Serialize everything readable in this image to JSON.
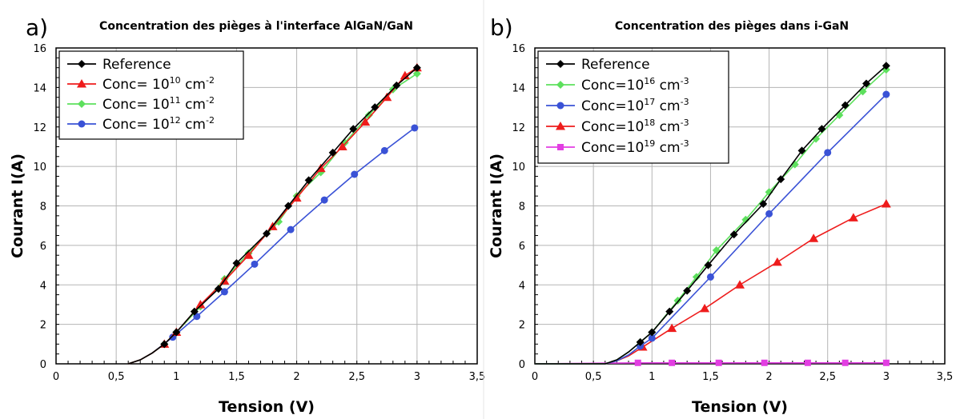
{
  "chart_data": [
    {
      "panel_label": "a)",
      "type": "line",
      "title": "Concentration des pièges à l'interface AlGaN/GaN",
      "xlabel": "Tension (V)",
      "ylabel": "Courant I(A)",
      "xlim": [
        0,
        3.5
      ],
      "ylim": [
        0,
        16
      ],
      "xticks": [
        "0",
        "0,5",
        "1",
        "1,5",
        "2",
        "2,5",
        "3",
        "3,5"
      ],
      "yticks": [
        "0",
        "2",
        "4",
        "6",
        "8",
        "10",
        "12",
        "14",
        "16"
      ],
      "grid": true,
      "legend_position": "top-left",
      "series": [
        {
          "name": "Reference",
          "base": "Reference",
          "sup": "",
          "unit": "",
          "color": "#000000",
          "marker": "diamond",
          "x": [
            0.6,
            0.7,
            0.8,
            0.9,
            1.0,
            1.15,
            1.35,
            1.5,
            1.75,
            1.93,
            2.1,
            2.3,
            2.47,
            2.65,
            2.83,
            3.0
          ],
          "y": [
            0,
            0.2,
            0.55,
            1.0,
            1.6,
            2.65,
            3.8,
            5.1,
            6.6,
            8.0,
            9.3,
            10.7,
            11.9,
            13.0,
            14.1,
            15.0
          ]
        },
        {
          "name": "Conc= 10^10 cm^-2",
          "base": "Conc= 10",
          "sup": "10",
          "unit": " cm",
          "unitsup": "-2",
          "color": "#ee1c1c",
          "marker": "triangle",
          "x": [
            0.6,
            0.7,
            0.8,
            0.9,
            1.0,
            1.2,
            1.4,
            1.6,
            1.8,
            2.0,
            2.2,
            2.38,
            2.57,
            2.75,
            2.9,
            3.0
          ],
          "y": [
            0,
            0.2,
            0.55,
            1.0,
            1.6,
            3.0,
            4.2,
            5.5,
            6.95,
            8.4,
            9.9,
            11.0,
            12.25,
            13.5,
            14.6,
            15.0
          ]
        },
        {
          "name": "Conc= 10^11 cm^-2",
          "base": "Conc= 10",
          "sup": "11",
          "unit": " cm",
          "unitsup": "-2",
          "color": "#5de05d",
          "marker": "diamond",
          "x": [
            0.6,
            0.7,
            0.8,
            0.9,
            1.0,
            1.2,
            1.4,
            1.6,
            1.85,
            2.0,
            2.2,
            2.4,
            2.6,
            2.8,
            3.0
          ],
          "y": [
            0,
            0.2,
            0.55,
            1.0,
            1.6,
            2.9,
            4.3,
            5.6,
            7.2,
            8.5,
            9.7,
            11.2,
            12.6,
            13.9,
            14.7
          ]
        },
        {
          "name": "Conc= 10^12 cm^-2",
          "base": "Conc= 10",
          "sup": "12",
          "unit": " cm",
          "unitsup": "-2",
          "color": "#3a52d6",
          "marker": "circle",
          "x": [
            0.6,
            0.7,
            0.8,
            0.97,
            1.17,
            1.4,
            1.65,
            1.95,
            2.23,
            2.48,
            2.73,
            2.98
          ],
          "y": [
            0,
            0.2,
            0.55,
            1.35,
            2.4,
            3.65,
            5.05,
            6.8,
            8.3,
            9.6,
            10.8,
            11.95
          ]
        }
      ]
    },
    {
      "panel_label": "b)",
      "type": "line",
      "title": "Concentration des pièges dans i-GaN",
      "xlabel": "Tension (V)",
      "ylabel": "Courant I(A)",
      "xlim": [
        0,
        3.5
      ],
      "ylim": [
        0,
        16
      ],
      "xticks": [
        "0",
        "0,5",
        "1",
        "1,5",
        "2",
        "2,5",
        "3",
        "3,5"
      ],
      "yticks": [
        "0",
        "2",
        "4",
        "6",
        "8",
        "10",
        "12",
        "14",
        "16"
      ],
      "grid": true,
      "legend_position": "top-left",
      "series": [
        {
          "name": "Reference",
          "base": "Reference",
          "sup": "",
          "unit": "",
          "color": "#000000",
          "marker": "diamond",
          "x": [
            0,
            0.6,
            0.7,
            0.8,
            0.9,
            1.0,
            1.15,
            1.3,
            1.48,
            1.7,
            1.95,
            2.1,
            2.28,
            2.45,
            2.65,
            2.83,
            3.0
          ],
          "y": [
            0,
            0,
            0.2,
            0.6,
            1.1,
            1.6,
            2.65,
            3.7,
            5.0,
            6.55,
            8.1,
            9.35,
            10.8,
            11.9,
            13.1,
            14.2,
            15.1
          ]
        },
        {
          "name": "Conc=10^16 cm^-3",
          "base": "Conc=10",
          "sup": "16",
          "unit": " cm",
          "unitsup": "-3",
          "color": "#5de05d",
          "marker": "diamond",
          "x": [
            0,
            0.6,
            0.7,
            0.8,
            0.9,
            1.0,
            1.22,
            1.38,
            1.55,
            1.8,
            2.0,
            2.22,
            2.4,
            2.6,
            2.8,
            3.0
          ],
          "y": [
            0,
            0,
            0.2,
            0.6,
            1.1,
            1.6,
            3.2,
            4.4,
            5.75,
            7.3,
            8.7,
            10.1,
            11.4,
            12.6,
            13.8,
            14.9
          ]
        },
        {
          "name": "Conc=10^17 cm^-3",
          "base": "Conc=10",
          "sup": "17",
          "unit": " cm",
          "unitsup": "-3",
          "color": "#3a52d6",
          "marker": "circle",
          "x": [
            0,
            0.6,
            0.7,
            0.8,
            0.9,
            1.0,
            1.5,
            2.0,
            2.5,
            3.0
          ],
          "y": [
            0,
            0,
            0.15,
            0.45,
            0.9,
            1.3,
            4.4,
            7.6,
            10.7,
            13.65
          ]
        },
        {
          "name": "Conc=10^18 cm^-3",
          "base": "Conc=10",
          "sup": "18",
          "unit": " cm",
          "unitsup": "-3",
          "color": "#ee1c1c",
          "marker": "triangle",
          "x": [
            0,
            0.6,
            0.7,
            0.8,
            0.92,
            1.17,
            1.45,
            1.75,
            2.07,
            2.38,
            2.72,
            3.0
          ],
          "y": [
            0,
            0,
            0.15,
            0.4,
            0.85,
            1.8,
            2.8,
            4.0,
            5.15,
            6.35,
            7.4,
            8.1
          ]
        },
        {
          "name": "Conc=10^19 cm^-3",
          "base": "Conc=10",
          "sup": "19",
          "unit": " cm",
          "unitsup": "-3",
          "color": "#e23ee2",
          "marker": "square",
          "x": [
            0,
            0.88,
            1.17,
            1.57,
            1.96,
            2.33,
            2.65,
            3.0
          ],
          "y": [
            0,
            0.05,
            0.05,
            0.05,
            0.05,
            0.05,
            0.05,
            0.05
          ]
        }
      ]
    }
  ]
}
